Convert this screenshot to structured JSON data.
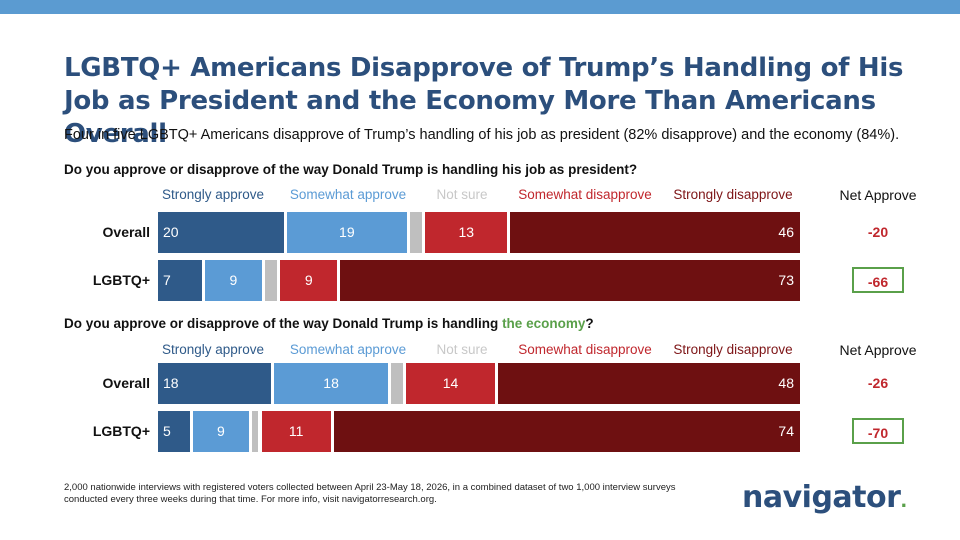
{
  "title": "LGBTQ+ Americans Disapprove of Trump’s Handling of His Job as President and the Economy More Than Americans Overall",
  "subtitle": "Four in five LGBTQ+ Americans disapprove of Trump’s handling of his job as president (82% disapprove) and the economy (84%).",
  "net_header": "Net Approve",
  "colors": {
    "strongly_approve": "#2f5a89",
    "somewhat_approve": "#5b9bd5",
    "not_sure": "#bfbfbf",
    "somewhat_disapprove": "#c0272d",
    "strongly_disapprove": "#6e1011",
    "net_highlight_border": "#5aa04a",
    "title": "#2c4f7c"
  },
  "legend_colors": [
    "#2f5a89",
    "#5b9bd5",
    "#c8c8c8",
    "#c0272d",
    "#7d1416"
  ],
  "chart_data": [
    {
      "type": "bar",
      "orientation": "horizontal-stacked",
      "question_prefix": "Do you approve or disapprove of the way Donald Trump is handling his job as president?",
      "question_highlight": "",
      "question_suffix": "",
      "categories": [
        "Overall",
        "LGBTQ+"
      ],
      "series": [
        {
          "name": "Strongly approve",
          "values": [
            20,
            7
          ]
        },
        {
          "name": "Somewhat approve",
          "values": [
            19,
            9
          ]
        },
        {
          "name": "Not sure",
          "values": [
            2,
            2
          ]
        },
        {
          "name": "Somewhat disapprove",
          "values": [
            13,
            9
          ]
        },
        {
          "name": "Strongly disapprove",
          "values": [
            46,
            73
          ]
        }
      ],
      "net_approve": [
        "-20",
        "-66"
      ],
      "net_highlight": [
        false,
        true
      ]
    },
    {
      "type": "bar",
      "orientation": "horizontal-stacked",
      "question_prefix": "Do you approve or disapprove of the way Donald Trump is handling ",
      "question_highlight": "the economy",
      "question_suffix": "?",
      "categories": [
        "Overall",
        "LGBTQ+"
      ],
      "series": [
        {
          "name": "Strongly approve",
          "values": [
            18,
            5
          ]
        },
        {
          "name": "Somewhat approve",
          "values": [
            18,
            9
          ]
        },
        {
          "name": "Not sure",
          "values": [
            2,
            1
          ]
        },
        {
          "name": "Somewhat disapprove",
          "values": [
            14,
            11
          ]
        },
        {
          "name": "Strongly disapprove",
          "values": [
            48,
            74
          ]
        }
      ],
      "net_approve": [
        "-26",
        "-70"
      ],
      "net_highlight": [
        false,
        true
      ]
    }
  ],
  "footnote": "2,000 nationwide interviews with registered voters collected between April 23-May 18, 2026, in a combined dataset of two 1,000 interview surveys conducted every three weeks during that time. For more info, visit navigatorresearch.org.",
  "logo": {
    "text": "navigator",
    "dot": "."
  }
}
